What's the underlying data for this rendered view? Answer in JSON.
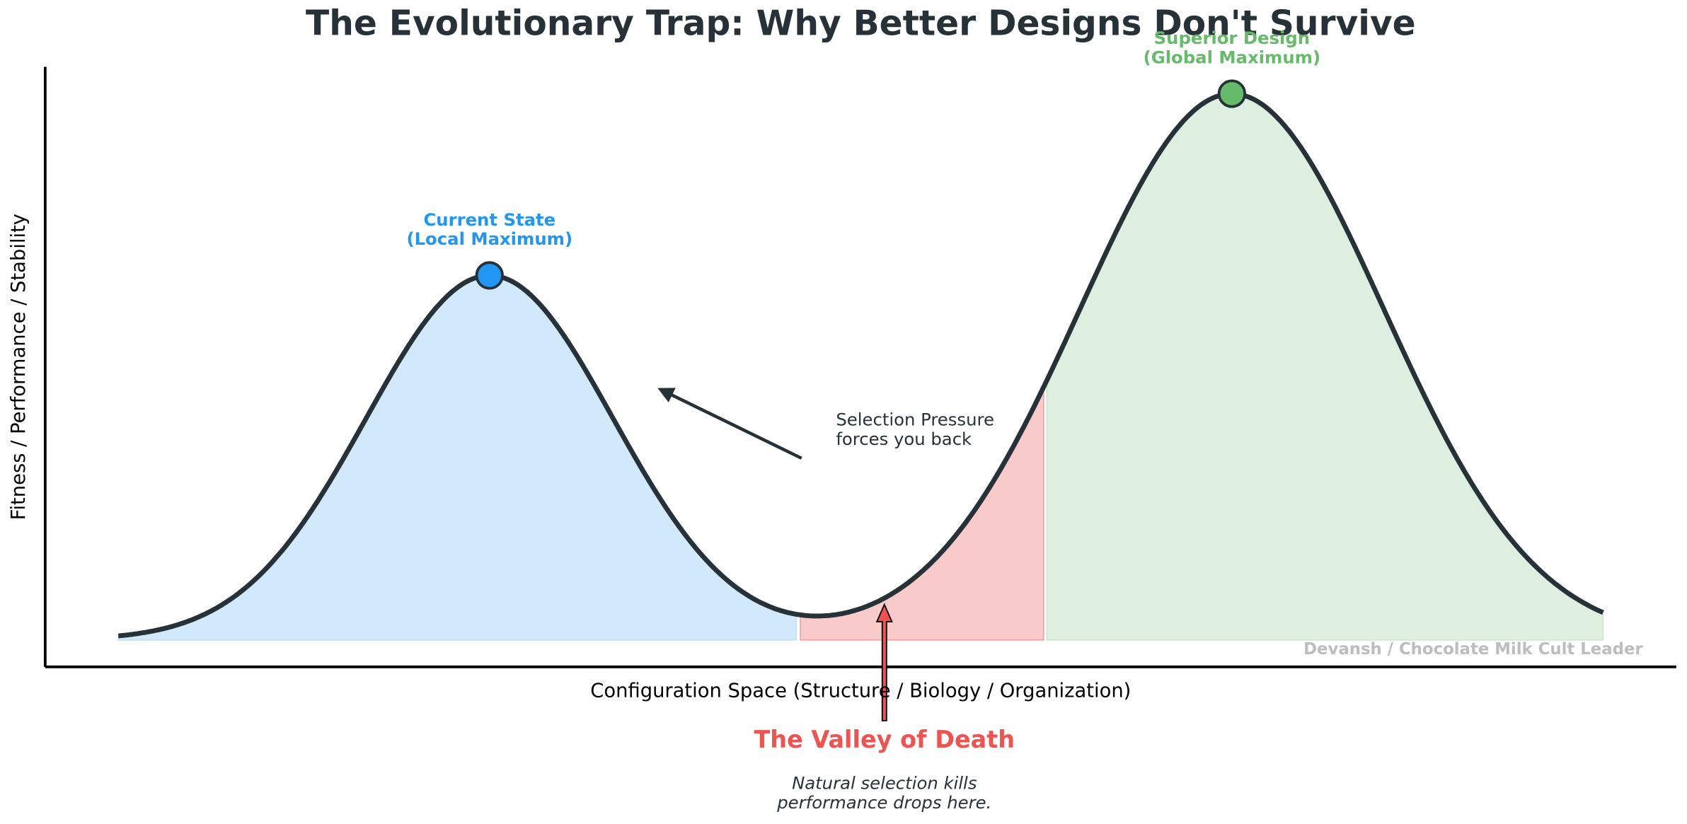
{
  "title": "The Evolutionary Trap: Why Better Designs Don't Survive",
  "y_label": "Fitness / Performance / Stability",
  "x_label": "Configuration Space (Structure / Biology / Organization)",
  "local_peak": [
    "Current State",
    "(Local Maximum)"
  ],
  "global_peak": [
    "Superior Design",
    "(Global Maximum)"
  ],
  "pressure_note": [
    "Selection Pressure",
    "forces you back"
  ],
  "valley_title": "The Valley of Death",
  "valley_note": [
    "Natural selection kills",
    "performance drops here."
  ],
  "credit": "Devansh / Chocolate Milk Cult Leader"
}
